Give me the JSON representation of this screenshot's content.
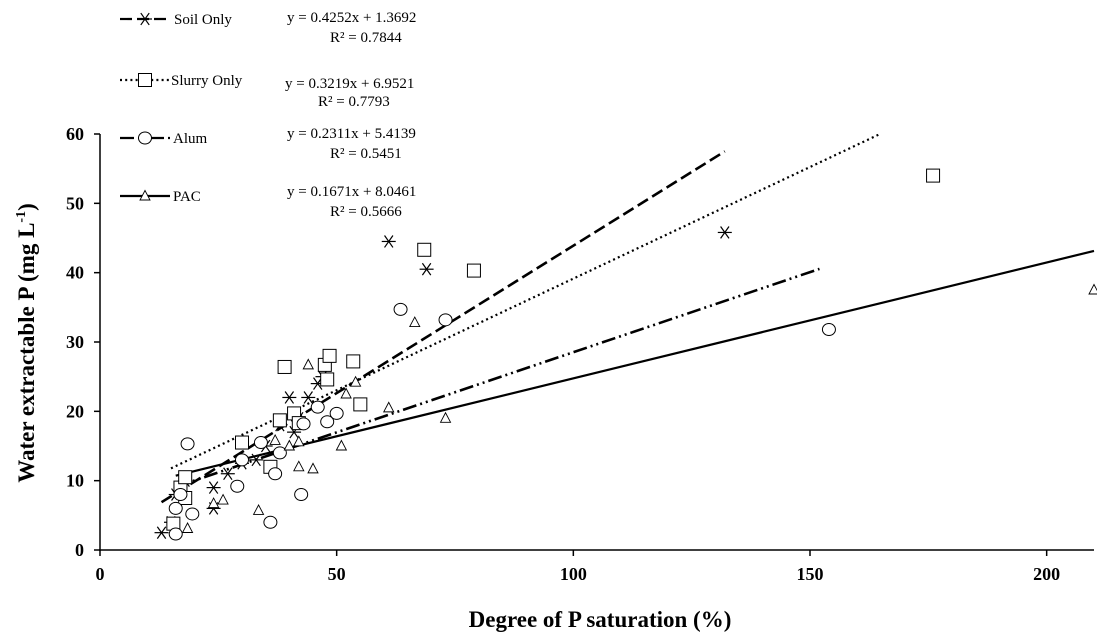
{
  "chart_data": {
    "type": "scatter",
    "xlabel": "Degree of P saturation (%)",
    "ylabel_main": "Water extractable P (mg L",
    "ylabel_sup": "-1",
    "ylabel_end": ")",
    "xlim": [
      0,
      210
    ],
    "ylim": [
      0,
      60
    ],
    "xticks": [
      0,
      50,
      100,
      150,
      200
    ],
    "yticks": [
      0,
      10,
      20,
      30,
      40,
      50,
      60
    ],
    "x_tick_labels": [
      "0",
      "50",
      "100",
      "150",
      "200"
    ],
    "y_tick_labels": [
      "0",
      "10",
      "20",
      "30",
      "40",
      "50",
      "60"
    ],
    "grid": false,
    "legend_position": "top-left",
    "series": [
      {
        "name": "Soil Only",
        "marker": "asterisk",
        "line_style": "dashed",
        "equation": "y = 0.4252x + 1.3692",
        "r2": "R² = 0.7844",
        "slope": 0.4252,
        "intercept": 1.3692,
        "fit_x_range": [
          13,
          132
        ],
        "points": [
          [
            13,
            2.5
          ],
          [
            15,
            4
          ],
          [
            16,
            8
          ],
          [
            17,
            9
          ],
          [
            18,
            10
          ],
          [
            24,
            9
          ],
          [
            24,
            6
          ],
          [
            27,
            11
          ],
          [
            30,
            12.5
          ],
          [
            33,
            13
          ],
          [
            35,
            15
          ],
          [
            38,
            18
          ],
          [
            40,
            22
          ],
          [
            41,
            17
          ],
          [
            42,
            19
          ],
          [
            44,
            22
          ],
          [
            46,
            24
          ],
          [
            47,
            25
          ],
          [
            61,
            44.5
          ],
          [
            69,
            40.5
          ],
          [
            132,
            45.8
          ]
        ]
      },
      {
        "name": "Slurry Only",
        "marker": "square",
        "line_style": "dotted",
        "equation": "y = 0.3219x + 6.9521",
        "r2": "R² = 0.7793",
        "slope": 0.3219,
        "intercept": 6.9521,
        "fit_x_range": [
          15,
          165
        ],
        "points": [
          [
            15.5,
            3.8
          ],
          [
            17,
            9
          ],
          [
            18,
            10.5
          ],
          [
            18,
            7.5
          ],
          [
            30,
            15.5
          ],
          [
            36,
            12
          ],
          [
            38,
            18.7
          ],
          [
            39,
            26.4
          ],
          [
            41,
            19.7
          ],
          [
            42,
            18.3
          ],
          [
            47.5,
            26.7
          ],
          [
            48,
            24.6
          ],
          [
            48.5,
            28
          ],
          [
            53.5,
            27.2
          ],
          [
            55,
            21
          ],
          [
            68.5,
            43.3
          ],
          [
            79,
            40.3
          ],
          [
            176,
            54
          ]
        ]
      },
      {
        "name": "Alum",
        "marker": "circle",
        "line_style": "dash-dot",
        "equation": "y = 0.2311x + 5.4139",
        "r2": "R² = 0.5451",
        "slope": 0.2311,
        "intercept": 5.4139,
        "fit_x_range": [
          16,
          152
        ],
        "points": [
          [
            16,
            2.3
          ],
          [
            16,
            6
          ],
          [
            17,
            8
          ],
          [
            18.5,
            15.3
          ],
          [
            19.5,
            5.2
          ],
          [
            29,
            9.2
          ],
          [
            30,
            13
          ],
          [
            34,
            15.5
          ],
          [
            36,
            4
          ],
          [
            37,
            11
          ],
          [
            38,
            14
          ],
          [
            42.5,
            8
          ],
          [
            43,
            18.2
          ],
          [
            46,
            20.6
          ],
          [
            48,
            18.5
          ],
          [
            50,
            19.7
          ],
          [
            63.5,
            34.7
          ],
          [
            73,
            33.2
          ],
          [
            154,
            31.8
          ]
        ]
      },
      {
        "name": "PAC",
        "marker": "triangle",
        "line_style": "solid",
        "equation": "y = 0.1671x + 8.0461",
        "r2": "R² = 0.5666",
        "slope": 0.1671,
        "intercept": 8.0461,
        "fit_x_range": [
          16,
          210
        ],
        "points": [
          [
            18.5,
            3.1
          ],
          [
            24,
            6.7
          ],
          [
            26,
            7.2
          ],
          [
            33.5,
            5.7
          ],
          [
            37,
            15.8
          ],
          [
            40,
            15
          ],
          [
            42,
            12
          ],
          [
            42,
            15.6
          ],
          [
            44,
            26.7
          ],
          [
            45,
            11.7
          ],
          [
            51,
            15
          ],
          [
            52,
            22.5
          ],
          [
            54,
            24.2
          ],
          [
            61,
            20.5
          ],
          [
            66.5,
            32.8
          ],
          [
            73,
            19
          ],
          [
            210,
            37.5
          ]
        ]
      }
    ]
  }
}
